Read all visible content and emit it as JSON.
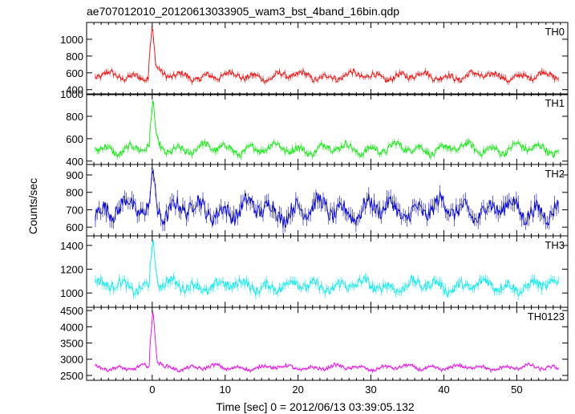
{
  "title": "ae707012010_20120613033905_wam3_bst_4band_16bin.qdp",
  "ylabel": "Counts/sec",
  "xlabel": "Time [sec] 0 = 2012/06/13 03:39:05.132",
  "chart_data": {
    "type": "line",
    "title": "ae707012010_20120613033905_wam3_bst_4band_16bin.qdp",
    "xlabel": "Time [sec] 0 = 2012/06/13 03:39:05.132",
    "ylabel": "Counts/sec",
    "xlim": [
      -9,
      57
    ],
    "x_ticks": [
      0,
      10,
      20,
      30,
      40,
      50
    ],
    "x_tick_labels": [
      "0",
      "10",
      "20",
      "30",
      "40",
      "50"
    ],
    "grid": false,
    "panels": [
      {
        "name": "TH0",
        "color": "#ff0000",
        "ylim": [
          340,
          1200
        ],
        "y_ticks": [
          400,
          600,
          800,
          1000
        ],
        "y_tick_labels": [
          "400",
          "600",
          "800",
          "1000"
        ],
        "baseline": 560,
        "amplitude": 55,
        "noise": 35,
        "peak": 1180,
        "peak_x": 0.0
      },
      {
        "name": "TH1",
        "color": "#00ee00",
        "ylim": [
          370,
          1000
        ],
        "y_ticks": [
          400,
          600,
          800,
          1000
        ],
        "y_tick_labels": [
          "400",
          "600",
          "800",
          "1000"
        ],
        "baseline": 510,
        "amplitude": 55,
        "noise": 30,
        "peak": 960,
        "peak_x": 0.1
      },
      {
        "name": "TH2",
        "color": "#0000dd",
        "ylim": [
          550,
          960
        ],
        "y_ticks": [
          600,
          700,
          800,
          900
        ],
        "y_tick_labels": [
          "600",
          "700",
          "800",
          "900"
        ],
        "baseline": 700,
        "amplitude": 65,
        "noise": 45,
        "peak": 950,
        "peak_x": 0.1
      },
      {
        "name": "TH3",
        "color": "#00eeee",
        "ylim": [
          880,
          1480
        ],
        "y_ticks": [
          1000,
          1200,
          1400
        ],
        "y_tick_labels": [
          "1000",
          "1200",
          "1400"
        ],
        "baseline": 1060,
        "amplitude": 55,
        "noise": 40,
        "peak": 1460,
        "peak_x": 0.1
      },
      {
        "name": "TH0123",
        "color": "#ee00ee",
        "ylim": [
          2350,
          4600
        ],
        "y_ticks": [
          2500,
          3000,
          3500,
          4000,
          4500
        ],
        "y_tick_labels": [
          "2500",
          "3000",
          "3500",
          "4000",
          "4500"
        ],
        "baseline": 2740,
        "amplitude": 90,
        "noise": 50,
        "peak": 4550,
        "peak_x": 0.1
      }
    ],
    "sample_step": 0.125
  }
}
